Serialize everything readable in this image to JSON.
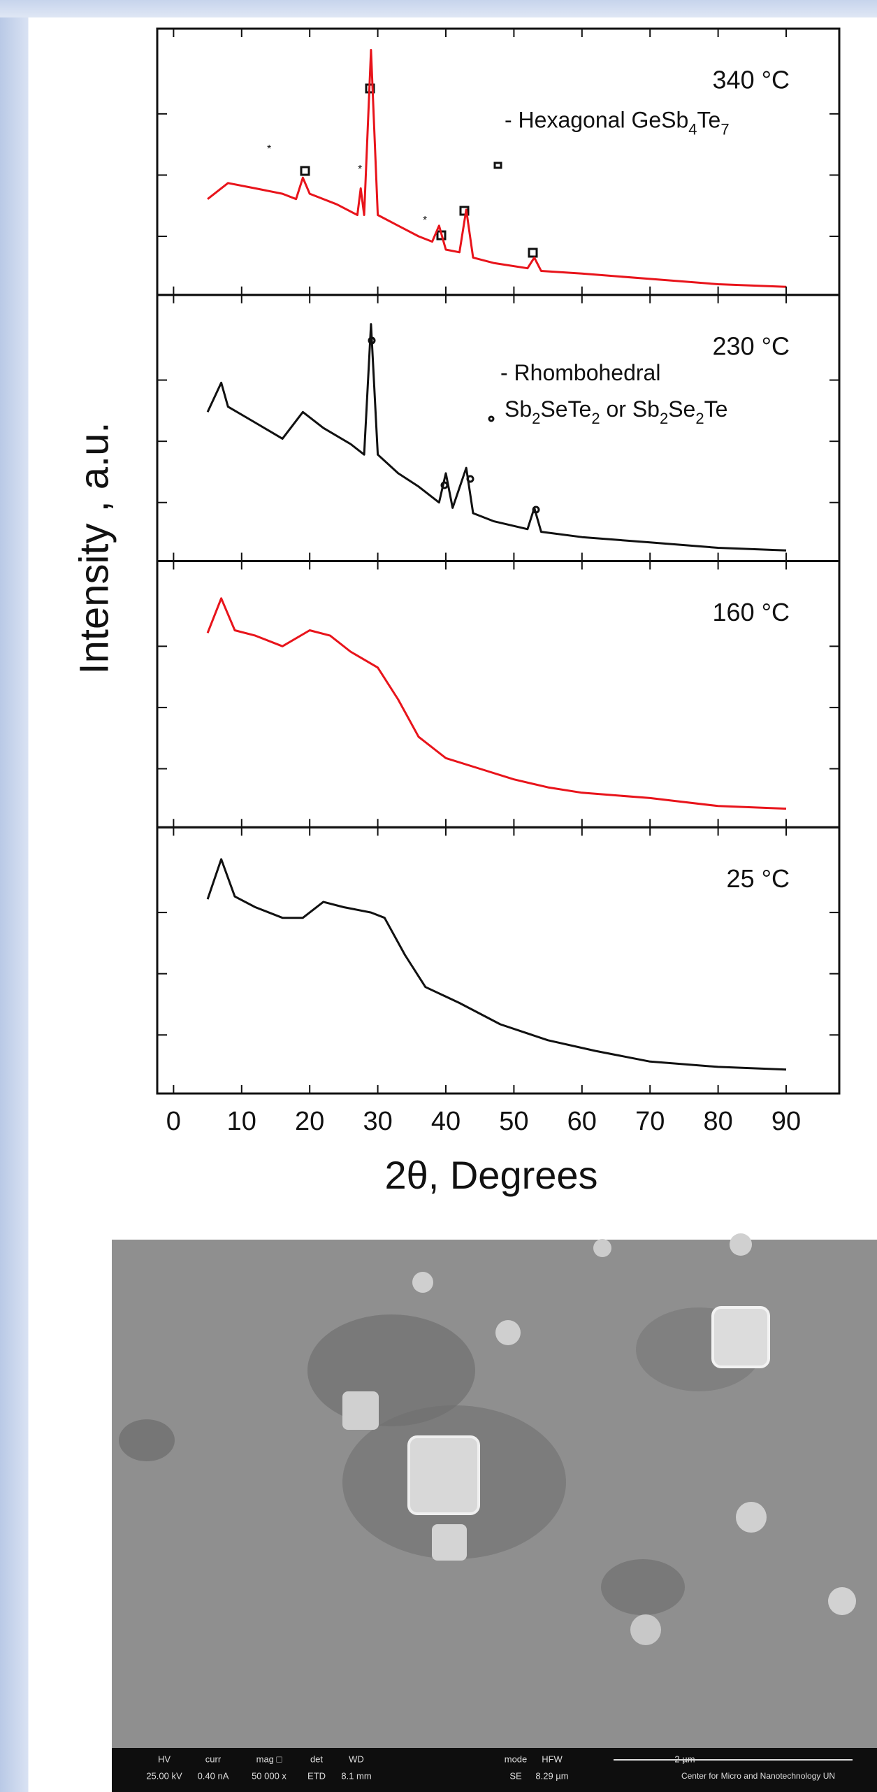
{
  "chart_data": [
    {
      "type": "line",
      "annotation": "340 °C",
      "legend_parts": [
        "- Hexagonal GeSb",
        "4",
        "Te",
        "7"
      ],
      "x": [
        5,
        8,
        12,
        16,
        18,
        19,
        20,
        24,
        27,
        27.5,
        28,
        29,
        30,
        33,
        36,
        38,
        39,
        40,
        42,
        43,
        44,
        47,
        52,
        53,
        54,
        60,
        70,
        80,
        90
      ],
      "series": [
        {
          "color": "#e8141b",
          "values": [
            36,
            42,
            40,
            38,
            36,
            44,
            38,
            34,
            30,
            40,
            30,
            92,
            30,
            26,
            22,
            20,
            26,
            17,
            16,
            32,
            14,
            12,
            10,
            14,
            9,
            8,
            6,
            4,
            3
          ]
        }
      ],
      "xlim": [
        -2.4,
        97.8
      ],
      "ylim": [
        0,
        100
      ],
      "yticks": [
        22,
        45,
        68
      ]
    },
    {
      "type": "line",
      "annotation": "230 °C",
      "legend_parts": [
        "- Rhombohedral",
        "Sb",
        "2",
        "SeTe",
        "2",
        " or Sb",
        "2",
        "Se",
        "2",
        "Te"
      ],
      "ylabel": "Intensity , a.u.",
      "x": [
        5,
        7,
        8,
        12,
        16,
        19,
        22,
        26,
        28,
        29,
        30,
        33,
        36,
        39,
        40,
        41,
        43,
        44,
        47,
        52,
        53,
        54,
        60,
        70,
        80,
        90
      ],
      "series": [
        {
          "color": "#111111",
          "values": [
            56,
            67,
            58,
            52,
            46,
            56,
            50,
            44,
            40,
            89,
            40,
            33,
            28,
            22,
            33,
            20,
            35,
            18,
            15,
            12,
            20,
            11,
            9,
            7,
            5,
            4
          ]
        }
      ],
      "xlim": [
        -2.4,
        97.8
      ],
      "ylim": [
        0,
        100
      ],
      "yticks": [
        22,
        45,
        68
      ]
    },
    {
      "type": "line",
      "annotation": "160 °C",
      "x": [
        5,
        7,
        9,
        12,
        16,
        20,
        23,
        26,
        30,
        33,
        36,
        40,
        45,
        50,
        55,
        60,
        70,
        80,
        90
      ],
      "series": [
        {
          "color": "#e8141b",
          "values": [
            73,
            86,
            74,
            72,
            68,
            74,
            72,
            66,
            60,
            48,
            34,
            26,
            22,
            18,
            15,
            13,
            11,
            8,
            7
          ]
        }
      ],
      "xlim": [
        -2.4,
        97.8
      ],
      "ylim": [
        0,
        100
      ],
      "yticks": [
        22,
        45,
        68
      ]
    },
    {
      "type": "line",
      "annotation": "25 °C",
      "xlabel": "2θ, Degrees",
      "x": [
        5,
        7,
        9,
        12,
        16,
        19,
        22,
        25,
        29,
        31,
        34,
        37,
        42,
        48,
        55,
        62,
        70,
        80,
        90
      ],
      "series": [
        {
          "color": "#111111",
          "values": [
            73,
            88,
            74,
            70,
            66,
            66,
            72,
            70,
            68,
            66,
            52,
            40,
            34,
            26,
            20,
            16,
            12,
            10,
            9
          ]
        }
      ],
      "xlim": [
        -2.4,
        97.8
      ],
      "ylim": [
        0,
        100
      ],
      "yticks": [
        22,
        45,
        68
      ],
      "xticks": [
        0,
        10,
        20,
        30,
        40,
        50,
        60,
        70,
        80,
        90
      ]
    }
  ],
  "sem_image": {
    "info": [
      "HV",
      "25.00 kV",
      "curr",
      "0.40 nA",
      "mag □",
      "50 000 x",
      "det",
      "ETD",
      "WD",
      "8.1 mm",
      "mode",
      "SE",
      "HFW",
      "8.29 µm",
      "2 µm",
      "Center for Micro and Nanotechnology UN"
    ]
  }
}
